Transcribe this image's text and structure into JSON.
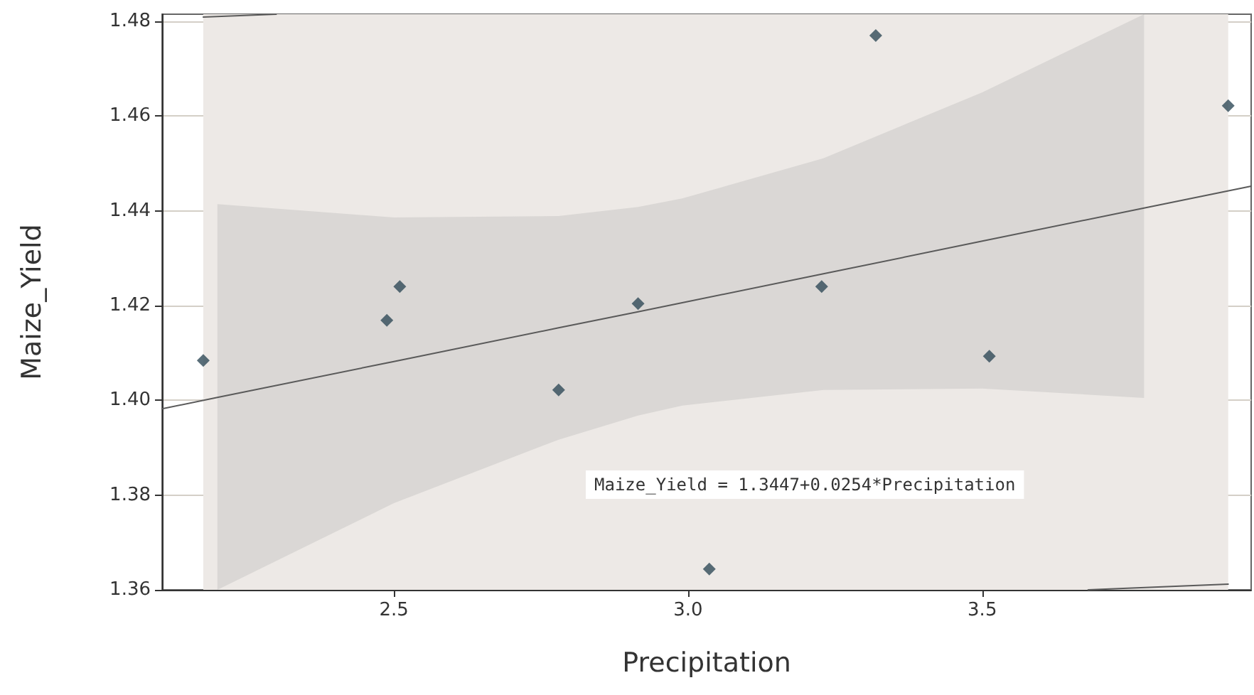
{
  "chart_data": {
    "type": "scatter",
    "xlabel": "Precipitation",
    "ylabel": "Maize_Yield",
    "xlim": [
      2.106,
      3.957
    ],
    "ylim": [
      1.36,
      1.4815
    ],
    "xticks": [
      {
        "value": 2.5,
        "label": "2.5"
      },
      {
        "value": 3.0,
        "label": "3.0"
      },
      {
        "value": 3.5,
        "label": "3.5"
      }
    ],
    "yticks": [
      1.36,
      1.38,
      {
        "value": 1.4,
        "label": "1.40"
      },
      1.42,
      1.44,
      1.46,
      1.48
    ],
    "grid": true,
    "line_style": "solid",
    "series": [
      {
        "type": "scatter",
        "marker": "diamond",
        "color": "#2f4a57",
        "x": [
          2.176,
          2.488,
          2.51,
          2.78,
          2.915,
          3.036,
          3.227,
          3.319,
          3.512,
          3.918
        ],
        "values": [
          1.4084,
          1.4169,
          1.424,
          1.4022,
          1.4204,
          1.3644,
          1.424,
          1.477,
          1.4093,
          1.4622
        ]
      },
      {
        "type": "line",
        "marker": "none",
        "color": "#5a5a5a",
        "x": [
          2.106,
          2.2,
          2.5,
          2.78,
          2.915,
          2.99,
          3.23,
          3.5,
          3.775,
          3.957
        ],
        "values": [
          1.3982,
          1.4006,
          1.4082,
          1.4153,
          1.4187,
          1.4206,
          1.4267,
          1.4336,
          1.4406,
          1.4452
        ],
        "lower": [
          null,
          1.36,
          1.3783,
          1.3917,
          1.3968,
          1.3989,
          1.4022,
          1.4025,
          1.4005,
          null
        ],
        "upper": [
          null,
          1.4414,
          1.4386,
          1.4389,
          1.4408,
          1.4426,
          1.4511,
          1.465,
          1.4815,
          null
        ]
      },
      {
        "type": "line",
        "marker": "none",
        "color": "#5a5a5a",
        "x": [
          2.176,
          2.3
        ],
        "values": [
          1.4809,
          1.4815
        ]
      },
      {
        "type": "line",
        "marker": "none",
        "color": "#5a5a5a",
        "x": [
          3.68,
          3.918
        ],
        "values": [
          1.36,
          1.3612
        ]
      }
    ],
    "bands": [
      {
        "axis": "x",
        "from": 2.176,
        "to": 3.918,
        "color": "#ede9e6"
      }
    ],
    "annotations": [
      "Maize_Yield = 1.3447+0.0254*Precipitation"
    ]
  }
}
